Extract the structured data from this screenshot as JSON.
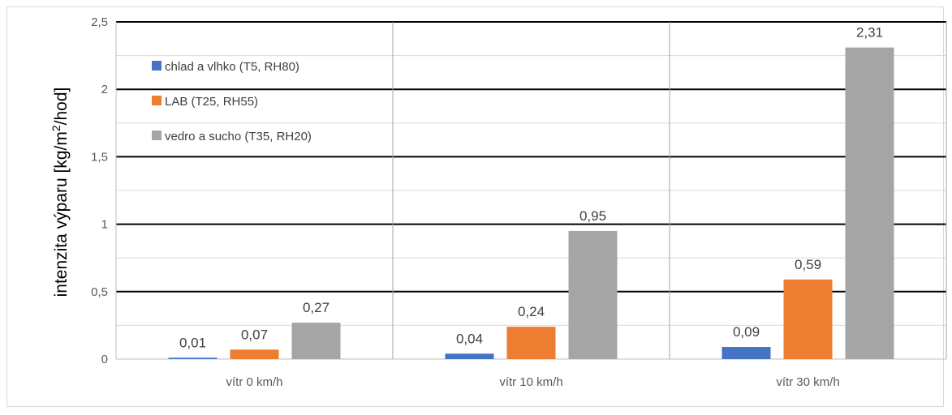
{
  "chart_data": {
    "type": "bar",
    "categories": [
      "vítr 0 km/h",
      "vítr 10 km/h",
      "vítr 30 km/h"
    ],
    "series": [
      {
        "name": "chlad a vlhko (T5, RH80)",
        "values": [
          0.01,
          0.04,
          0.09
        ],
        "labels": [
          "0,01",
          "0,04",
          "0,09"
        ],
        "color": "#4472c4"
      },
      {
        "name": "LAB (T25, RH55)",
        "values": [
          0.07,
          0.24,
          0.59
        ],
        "labels": [
          "0,07",
          "0,24",
          "0,59"
        ],
        "color": "#ed7d31"
      },
      {
        "name": "vedro a sucho (T35, RH20)",
        "values": [
          0.27,
          0.95,
          2.31
        ],
        "labels": [
          "0,27",
          "0,95",
          "2,31"
        ],
        "color": "#a5a5a5"
      }
    ],
    "ylabel_main": "intenzita výparu [kg/m",
    "ylabel_sup": "2",
    "ylabel_end": "/hod]",
    "xlabel": "",
    "ylim": [
      0,
      2.5
    ],
    "yticks": [
      0,
      0.5,
      1,
      1.5,
      2,
      2.5
    ],
    "ytick_labels": [
      "0",
      "0,5",
      "1",
      "1,5",
      "2",
      "2,5"
    ],
    "legend_position": "top-left inside plot",
    "grid": true
  }
}
